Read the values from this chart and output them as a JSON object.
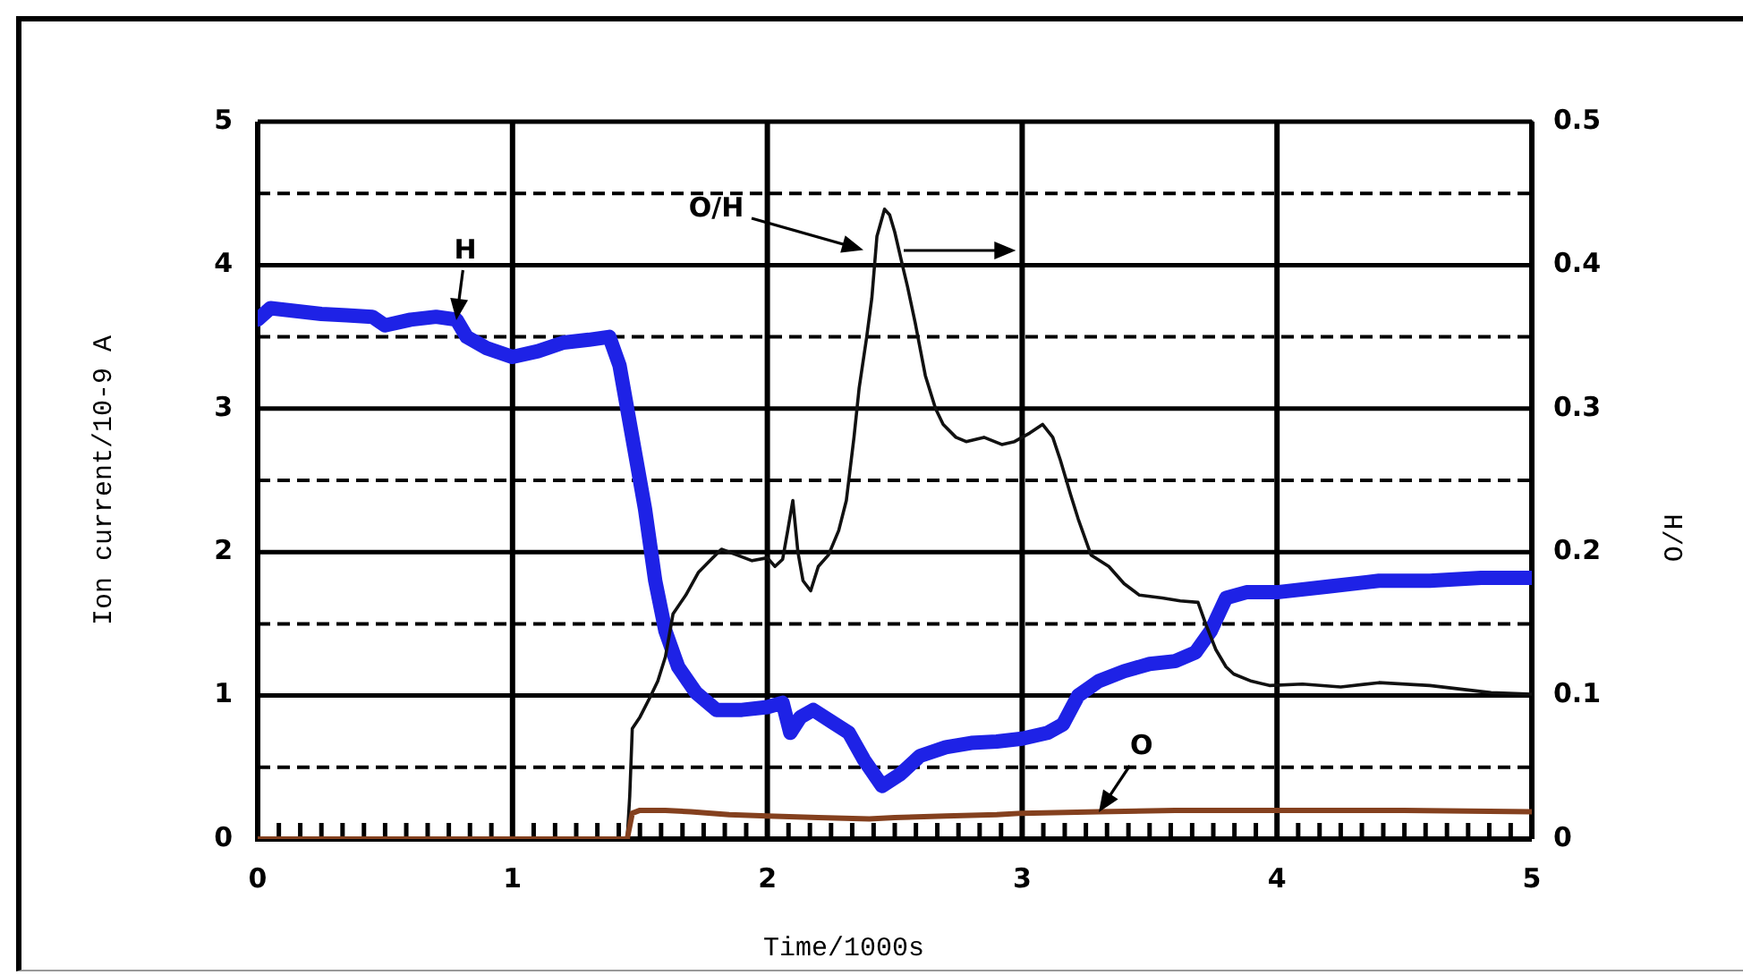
{
  "chart_data": {
    "type": "line",
    "xlabel": "Time/1000s",
    "ylabel": "Ion current/10-9 A",
    "y2label": "O/H",
    "xlim": [
      0,
      5
    ],
    "xticks": [
      0,
      {
        "value": 0.083,
        "label": null
      },
      {
        "value": 0.167,
        "label": null
      },
      {
        "value": 0.25,
        "label": null
      },
      {
        "value": 0.333,
        "label": null
      },
      {
        "value": 0.417,
        "label": null
      },
      {
        "value": 0.5,
        "label": null
      },
      {
        "value": 0.583,
        "label": null
      },
      {
        "value": 0.667,
        "label": null
      },
      {
        "value": 0.75,
        "label": null
      },
      {
        "value": 0.833,
        "label": null
      },
      {
        "value": 0.917,
        "label": null
      },
      1,
      {
        "value": 1.083,
        "label": null
      },
      {
        "value": 1.167,
        "label": null
      },
      {
        "value": 1.25,
        "label": null
      },
      {
        "value": 1.333,
        "label": null
      },
      {
        "value": 1.417,
        "label": null
      },
      {
        "value": 1.5,
        "label": null
      },
      {
        "value": 1.583,
        "label": null
      },
      {
        "value": 1.667,
        "label": null
      },
      {
        "value": 1.75,
        "label": null
      },
      {
        "value": 1.833,
        "label": null
      },
      {
        "value": 1.917,
        "label": null
      },
      2,
      {
        "value": 2.083,
        "label": null
      },
      {
        "value": 2.167,
        "label": null
      },
      {
        "value": 2.25,
        "label": null
      },
      {
        "value": 2.333,
        "label": null
      },
      {
        "value": 2.417,
        "label": null
      },
      {
        "value": 2.5,
        "label": null
      },
      {
        "value": 2.583,
        "label": null
      },
      {
        "value": 2.667,
        "label": null
      },
      {
        "value": 2.75,
        "label": null
      },
      {
        "value": 2.833,
        "label": null
      },
      {
        "value": 2.917,
        "label": null
      },
      3,
      {
        "value": 3.083,
        "label": null
      },
      {
        "value": 3.167,
        "label": null
      },
      {
        "value": 3.25,
        "label": null
      },
      {
        "value": 3.333,
        "label": null
      },
      {
        "value": 3.417,
        "label": null
      },
      {
        "value": 3.5,
        "label": null
      },
      {
        "value": 3.583,
        "label": null
      },
      {
        "value": 3.667,
        "label": null
      },
      {
        "value": 3.75,
        "label": null
      },
      {
        "value": 3.833,
        "label": null
      },
      {
        "value": 3.917,
        "label": null
      },
      4,
      {
        "value": 4.083,
        "label": null
      },
      {
        "value": 4.167,
        "label": null
      },
      {
        "value": 4.25,
        "label": null
      },
      {
        "value": 4.333,
        "label": null
      },
      {
        "value": 4.417,
        "label": null
      },
      {
        "value": 4.5,
        "label": null
      },
      {
        "value": 4.583,
        "label": null
      },
      {
        "value": 4.667,
        "label": null
      },
      {
        "value": 4.75,
        "label": null
      },
      {
        "value": 4.833,
        "label": null
      },
      {
        "value": 4.917,
        "label": null
      },
      5
    ],
    "ylim": [
      0,
      5
    ],
    "yticks": [
      0,
      {
        "value": 0.5,
        "label": null
      },
      1,
      {
        "value": 1.5,
        "label": null
      },
      2,
      {
        "value": 2.5,
        "label": null
      },
      3,
      {
        "value": 3.5,
        "label": null
      },
      4,
      {
        "value": 4.5,
        "label": null
      },
      5
    ],
    "y2lim": [
      0,
      0.5
    ],
    "y2ticks": [
      0,
      0.1,
      0.2,
      0.3,
      0.4,
      0.5
    ],
    "grid": true,
    "series": [
      {
        "color": "#1e22e6",
        "x": [
          0,
          0.05,
          0.15,
          0.25,
          0.35,
          0.45,
          0.5,
          0.6,
          0.7,
          0.78,
          0.82,
          0.9,
          1.0,
          1.1,
          1.2,
          1.3,
          1.38,
          1.42,
          1.47,
          1.52,
          1.56,
          1.6,
          1.65,
          1.72,
          1.8,
          1.9,
          2.0,
          2.06,
          2.09,
          2.13,
          2.18,
          2.25,
          2.32,
          2.38,
          2.45,
          2.52,
          2.6,
          2.7,
          2.8,
          2.9,
          3.0,
          3.1,
          3.16,
          3.22,
          3.3,
          3.4,
          3.5,
          3.6,
          3.68,
          3.74,
          3.8,
          3.88,
          4.0,
          4.2,
          4.4,
          4.6,
          4.8,
          5.0
        ],
        "values": [
          3.62,
          3.7,
          3.68,
          3.66,
          3.65,
          3.64,
          3.58,
          3.62,
          3.64,
          3.62,
          3.5,
          3.42,
          3.36,
          3.4,
          3.46,
          3.48,
          3.5,
          3.3,
          2.8,
          2.3,
          1.8,
          1.45,
          1.2,
          1.02,
          0.9,
          0.9,
          0.92,
          0.95,
          0.74,
          0.85,
          0.9,
          0.82,
          0.74,
          0.55,
          0.37,
          0.45,
          0.58,
          0.64,
          0.67,
          0.68,
          0.7,
          0.74,
          0.8,
          1.0,
          1.1,
          1.17,
          1.22,
          1.24,
          1.3,
          1.45,
          1.68,
          1.72,
          1.72,
          1.76,
          1.8,
          1.8,
          1.82,
          1.82
        ]
      },
      {
        "color": "#111111",
        "axis": "y2",
        "x": [
          1.45,
          1.46,
          1.47,
          1.5,
          1.54,
          1.57,
          1.6,
          1.63,
          1.68,
          1.73,
          1.78,
          1.82,
          1.88,
          1.94,
          2.0,
          2.03,
          2.06,
          2.08,
          2.1,
          2.12,
          2.14,
          2.17,
          2.2,
          2.24,
          2.28,
          2.31,
          2.34,
          2.36,
          2.39,
          2.41,
          2.43,
          2.46,
          2.48,
          2.5,
          2.53,
          2.55,
          2.58,
          2.62,
          2.66,
          2.69,
          2.74,
          2.78,
          2.85,
          2.92,
          2.97,
          3.03,
          3.08,
          3.12,
          3.15,
          3.19,
          3.22,
          3.27,
          3.34,
          3.4,
          3.46,
          3.55,
          3.62,
          3.69,
          3.72,
          3.76,
          3.8,
          3.83,
          3.9,
          3.97,
          4.1,
          4.25,
          4.4,
          4.6,
          4.84,
          5.0
        ],
        "values": [
          0,
          0.03,
          0.077,
          0.085,
          0.099,
          0.11,
          0.127,
          0.157,
          0.17,
          0.186,
          0.195,
          0.202,
          0.198,
          0.194,
          0.196,
          0.19,
          0.195,
          0.215,
          0.236,
          0.2,
          0.18,
          0.173,
          0.19,
          0.198,
          0.215,
          0.236,
          0.28,
          0.314,
          0.35,
          0.377,
          0.42,
          0.439,
          0.435,
          0.423,
          0.4,
          0.385,
          0.36,
          0.323,
          0.3,
          0.289,
          0.28,
          0.277,
          0.28,
          0.275,
          0.277,
          0.283,
          0.289,
          0.28,
          0.264,
          0.24,
          0.223,
          0.198,
          0.19,
          0.178,
          0.17,
          0.168,
          0.166,
          0.165,
          0.15,
          0.132,
          0.12,
          0.115,
          0.11,
          0.107,
          0.108,
          0.106,
          0.109,
          0.107,
          0.102,
          0.101
        ]
      },
      {
        "color": "#84401e",
        "x": [
          0,
          0.5,
          1.0,
          1.45,
          1.47,
          1.5,
          1.6,
          1.7,
          1.85,
          2.0,
          2.2,
          2.4,
          2.5,
          2.7,
          2.9,
          3.0,
          3.3,
          3.6,
          4.0,
          4.5,
          5.0
        ],
        "values": [
          0,
          0,
          0,
          0,
          0.18,
          0.2,
          0.2,
          0.19,
          0.17,
          0.16,
          0.15,
          0.14,
          0.15,
          0.16,
          0.17,
          0.18,
          0.19,
          0.2,
          0.2,
          0.2,
          0.19
        ]
      }
    ],
    "annotations": [
      {
        "text": "H",
        "x": 0.78,
        "y": 3.62
      },
      "O/H",
      {
        "text": "O",
        "x": 3.3,
        "y": 0.19
      }
    ]
  }
}
